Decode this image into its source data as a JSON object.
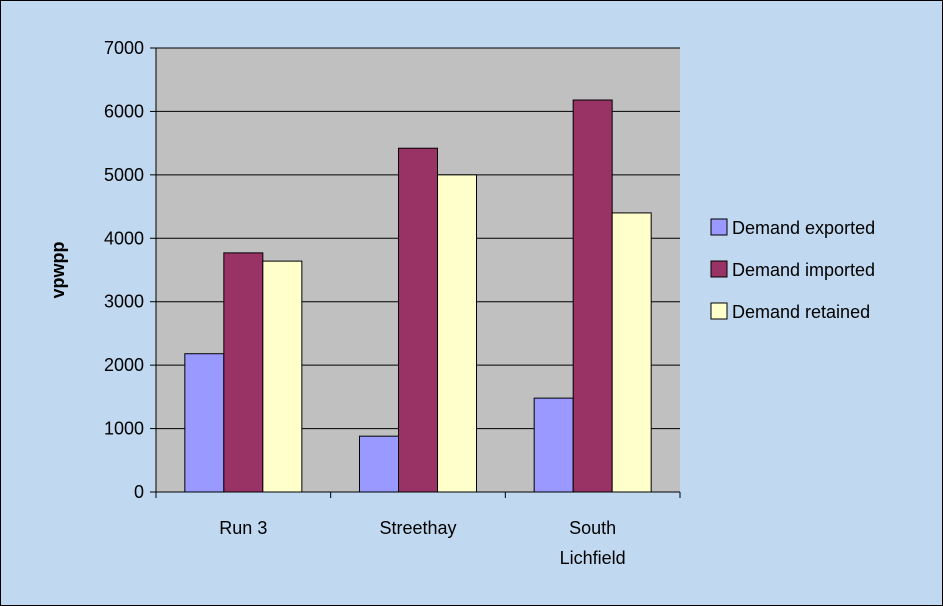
{
  "chart_data": {
    "type": "bar",
    "ylabel": "vpwpp",
    "xlabel": "",
    "ylim": [
      0,
      7000
    ],
    "yticks": [
      0,
      1000,
      2000,
      3000,
      4000,
      5000,
      6000,
      7000
    ],
    "categories": [
      [
        "Run 3"
      ],
      [
        "Streethay"
      ],
      [
        "South",
        "Lichfield"
      ]
    ],
    "series": [
      {
        "name": "Demand exported",
        "color": "#9999ff",
        "values": [
          2180,
          880,
          1480
        ]
      },
      {
        "name": "Demand imported",
        "color": "#993366",
        "values": [
          3770,
          5420,
          6180
        ]
      },
      {
        "name": "Demand retained",
        "color": "#ffffcc",
        "values": [
          3640,
          5000,
          4400
        ]
      }
    ],
    "plot_background": "#c0c0c0",
    "frame_background": "#c0d8f0",
    "grid": true,
    "legend_position": "right"
  }
}
